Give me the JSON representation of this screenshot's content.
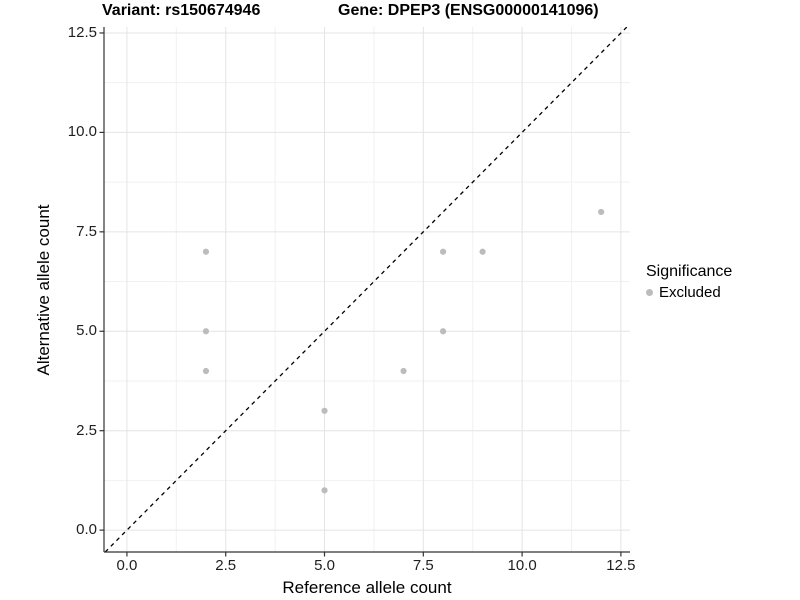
{
  "header": {
    "title_left": "Variant: rs150674946",
    "title_right": "Gene: DPEP3 (ENSG00000141096)"
  },
  "chart_data": {
    "type": "scatter",
    "title_left": "Variant: rs150674946",
    "title_right": "Gene: DPEP3 (ENSG00000141096)",
    "xlabel": "Reference allele count",
    "ylabel": "Alternative allele count",
    "x_tick_labels": [
      "0.0",
      "2.5",
      "5.0",
      "7.5",
      "10.0",
      "12.5"
    ],
    "y_tick_labels": [
      "0.0",
      "2.5",
      "5.0",
      "7.5",
      "10.0",
      "12.5"
    ],
    "xlim": [
      -0.58,
      12.73
    ],
    "ylim": [
      -0.55,
      12.65
    ],
    "grid": {
      "major": true,
      "minor": true,
      "minor_step": 1.25
    },
    "points": [
      {
        "x": 2,
        "y": 7
      },
      {
        "x": 2,
        "y": 5
      },
      {
        "x": 2,
        "y": 4
      },
      {
        "x": 5,
        "y": 3
      },
      {
        "x": 5,
        "y": 1
      },
      {
        "x": 7,
        "y": 4
      },
      {
        "x": 8,
        "y": 7
      },
      {
        "x": 8,
        "y": 5
      },
      {
        "x": 9,
        "y": 7
      },
      {
        "x": 12,
        "y": 8
      }
    ],
    "reference_line": {
      "type": "identity",
      "style": "dashed",
      "color": "#000000"
    },
    "legend": {
      "title": "Significance",
      "position": "right",
      "entries": [
        {
          "label": "Excluded",
          "color": "#bcbcbc"
        }
      ]
    },
    "colors": {
      "point": "#bcbcbc",
      "grid_major": "#e4e4e4",
      "grid_minor": "#f1f1f1",
      "axis_line": "#333333",
      "panel_background": "#ffffff"
    }
  }
}
